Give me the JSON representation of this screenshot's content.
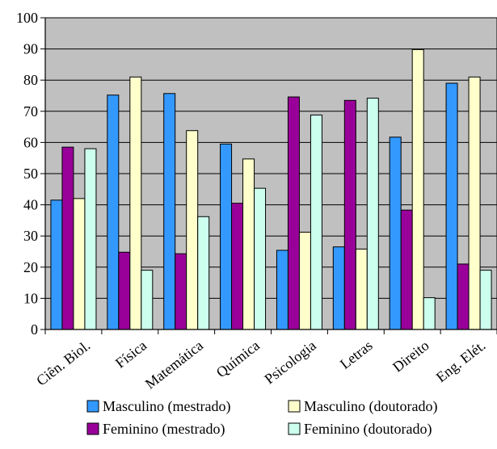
{
  "chart_data": {
    "type": "bar",
    "categories": [
      "Ciên. Biol.",
      "Física",
      "Matemática",
      "Química",
      "Psicologia",
      "Letras",
      "Direito",
      "Eng. Elét."
    ],
    "series": [
      {
        "name": "Masculino (mestrado)",
        "color": "#3399ff",
        "values": [
          41.5,
          75.2,
          75.7,
          59.5,
          25.4,
          26.5,
          61.7,
          79
        ]
      },
      {
        "name": "Feminino (mestrado)",
        "color": "#990099",
        "values": [
          58.5,
          24.8,
          24.3,
          40.5,
          74.6,
          73.5,
          38.3,
          21
        ]
      },
      {
        "name": "Masculino (doutorado)",
        "color": "#ffffcc",
        "values": [
          42,
          81,
          63.8,
          54.7,
          31.2,
          25.8,
          89.8,
          81
        ]
      },
      {
        "name": "Feminino (doutorado)",
        "color": "#ccffee",
        "values": [
          58,
          19,
          36.2,
          45.3,
          68.8,
          74.2,
          10.2,
          19
        ]
      }
    ],
    "yticks": [
      0,
      10,
      20,
      30,
      40,
      50,
      60,
      70,
      80,
      90,
      100
    ],
    "ylim": [
      0,
      100
    ],
    "grid": true,
    "plot_background": "#c0c0c0",
    "legend_position": "bottom",
    "title": "",
    "xlabel": "",
    "ylabel": ""
  }
}
